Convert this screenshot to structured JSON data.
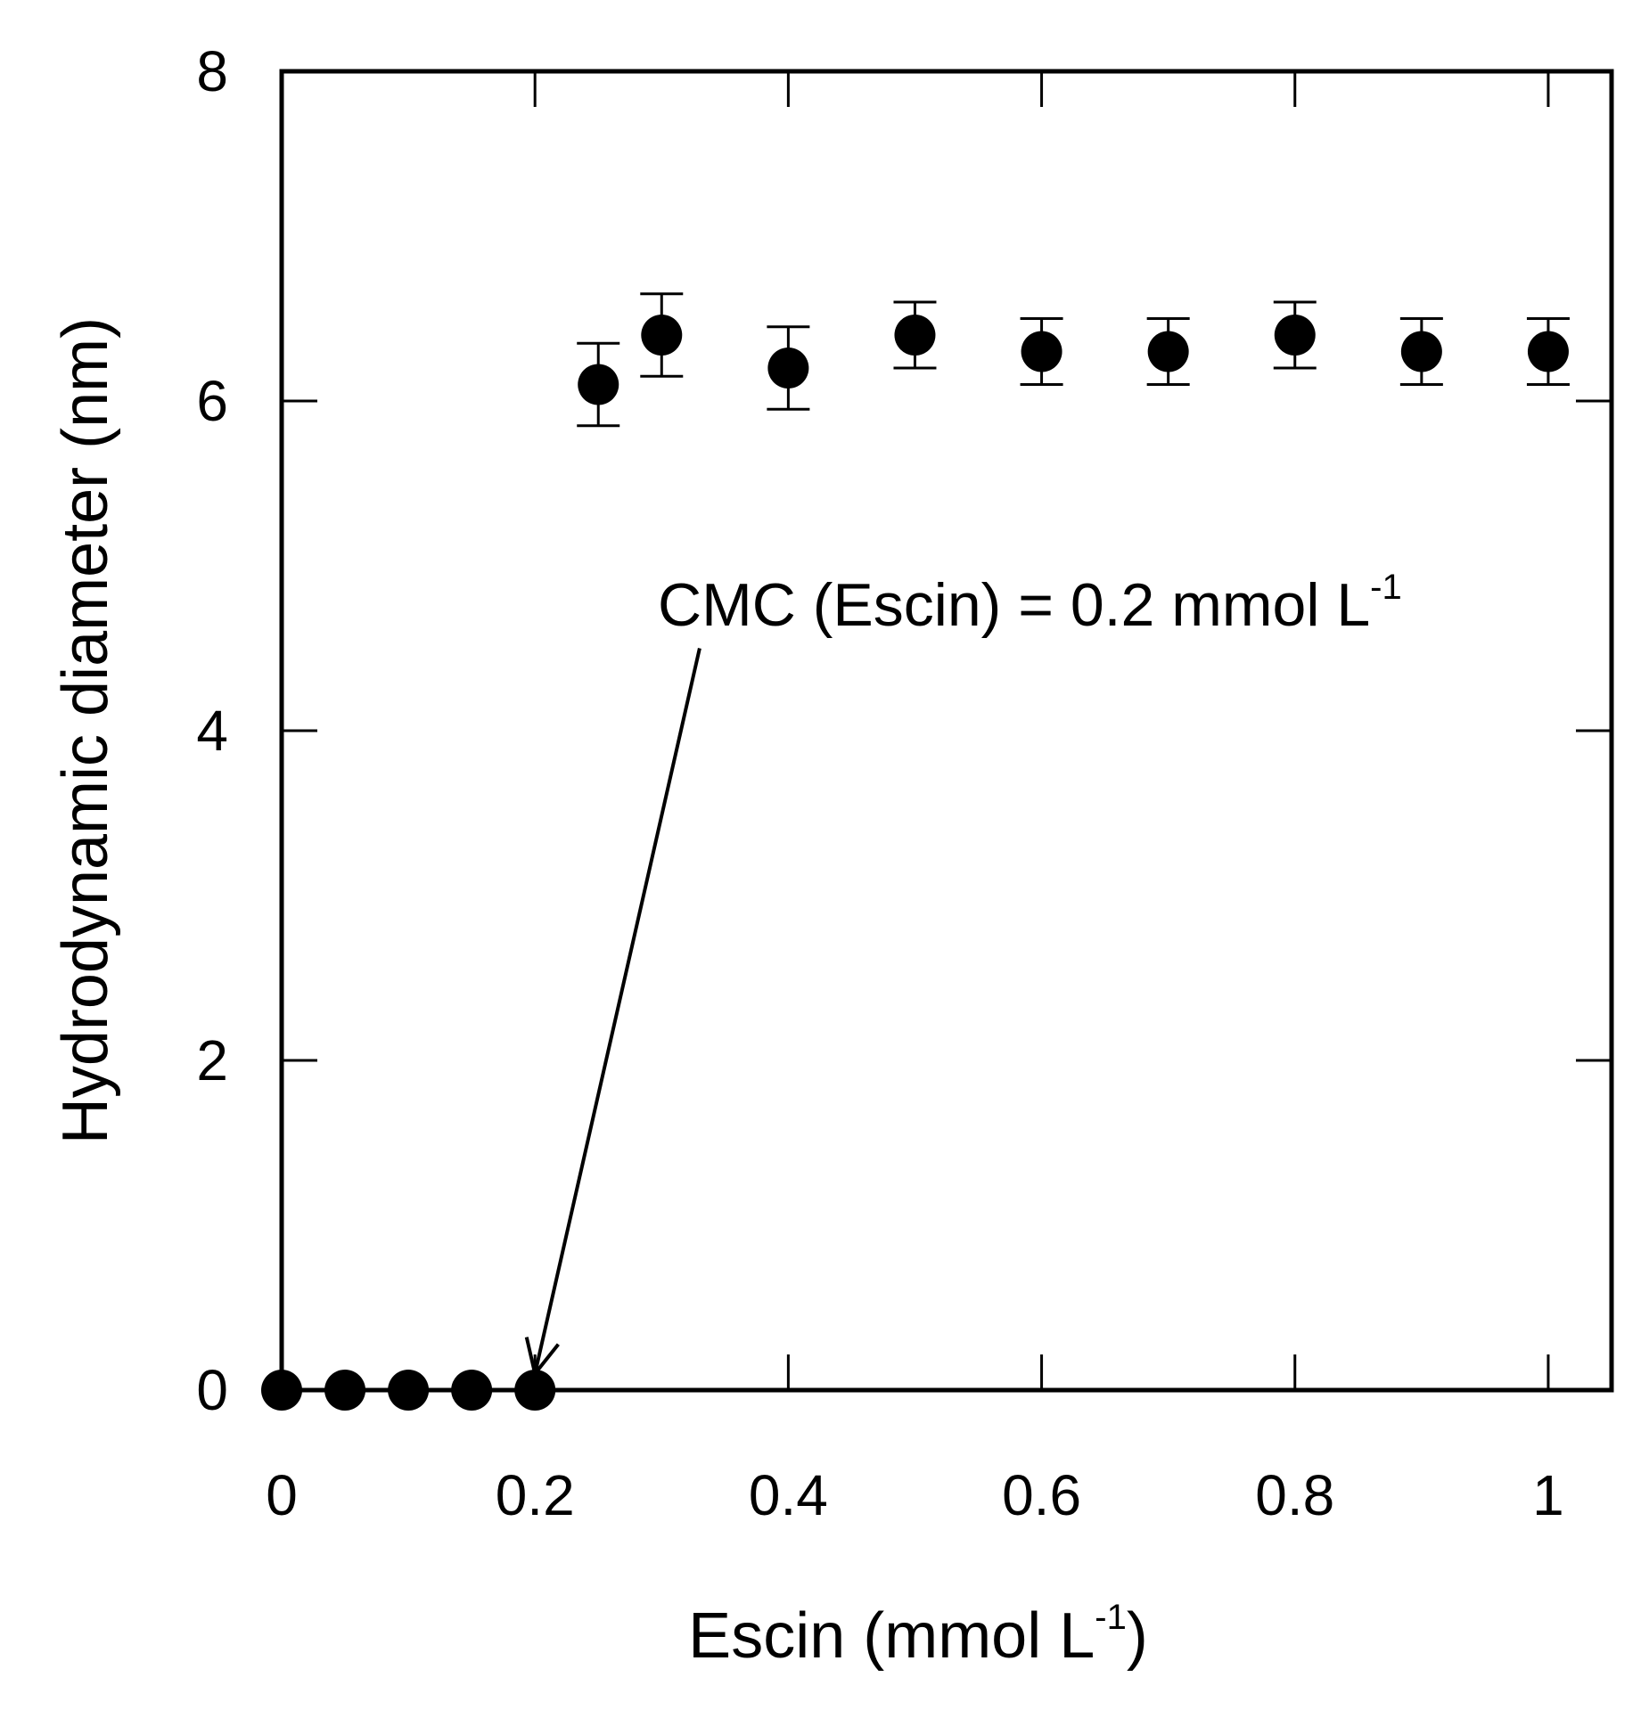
{
  "chart_data": {
    "type": "scatter",
    "xlabel": {
      "main": "Escin (mmol L",
      "sup": "-1",
      "end": ")"
    },
    "ylabel": "Hydrodynamic diameter  (nm)",
    "xlim": [
      0,
      1.05
    ],
    "ylim": [
      0,
      8
    ],
    "x_ticks": [
      0,
      0.2,
      0.4,
      0.6,
      0.8,
      1
    ],
    "x_tick_labels": [
      "0",
      "0.2",
      "0.4",
      "0.6",
      "0.8",
      "1"
    ],
    "y_ticks": [
      0,
      2,
      4,
      6,
      8
    ],
    "y_tick_labels": [
      "0",
      "2",
      "4",
      "6",
      "8"
    ],
    "grid": false,
    "marker_color": "#000000",
    "points": [
      {
        "x": 0.0,
        "y": 0,
        "err": 0
      },
      {
        "x": 0.05,
        "y": 0,
        "err": 0
      },
      {
        "x": 0.1,
        "y": 0,
        "err": 0
      },
      {
        "x": 0.15,
        "y": 0,
        "err": 0
      },
      {
        "x": 0.2,
        "y": 0,
        "err": 0
      },
      {
        "x": 0.25,
        "y": 6.1,
        "err": 0.25
      },
      {
        "x": 0.3,
        "y": 6.4,
        "err": 0.25
      },
      {
        "x": 0.4,
        "y": 6.2,
        "err": 0.25
      },
      {
        "x": 0.5,
        "y": 6.4,
        "err": 0.2
      },
      {
        "x": 0.6,
        "y": 6.3,
        "err": 0.2
      },
      {
        "x": 0.7,
        "y": 6.3,
        "err": 0.2
      },
      {
        "x": 0.8,
        "y": 6.4,
        "err": 0.2
      },
      {
        "x": 0.9,
        "y": 6.3,
        "err": 0.2
      },
      {
        "x": 1.0,
        "y": 6.3,
        "err": 0.2
      }
    ],
    "annotation": {
      "text": "CMC (Escin) = 0.2 mmol L",
      "sup": "-1",
      "arrow_from": [
        0.33,
        4.5
      ],
      "arrow_to": [
        0.2,
        0.1
      ]
    }
  }
}
